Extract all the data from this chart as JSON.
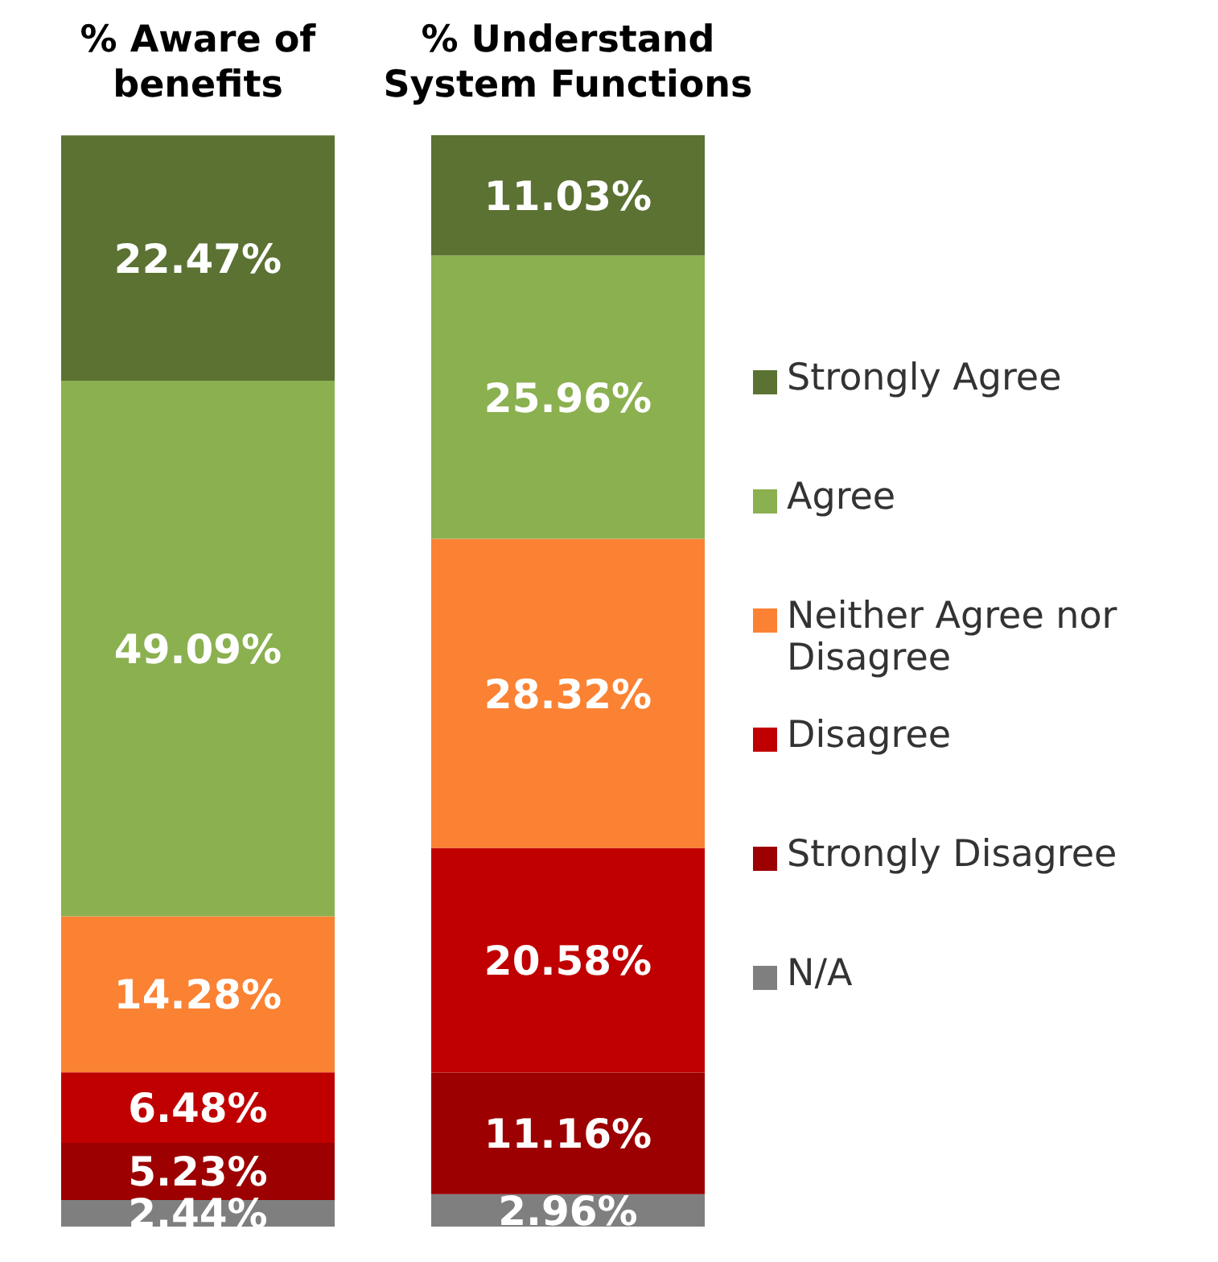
{
  "chart_data": {
    "type": "bar",
    "stacked": true,
    "legend": "right",
    "categories": [
      "% Aware of benefits",
      "% Understand System Functions"
    ],
    "series": [
      {
        "name": "N/A",
        "color": "#7f7f7f",
        "values": [
          2.44,
          2.96
        ],
        "value_labels": [
          "2.44%",
          "2.96%"
        ]
      },
      {
        "name": "Strongly Disagree",
        "color": "#9c0000",
        "values": [
          5.23,
          11.16
        ],
        "value_labels": [
          "5.23%",
          "11.16%"
        ]
      },
      {
        "name": "Disagree",
        "color": "#c00000",
        "values": [
          6.48,
          20.58
        ],
        "value_labels": [
          "6.48%",
          "20.58%"
        ]
      },
      {
        "name": "Neither Agree nor Disagree",
        "color": "#fb8233",
        "values": [
          14.28,
          28.32
        ],
        "value_labels": [
          "14.28%",
          "28.32%"
        ]
      },
      {
        "name": "Agree",
        "color": "#8bb050",
        "values": [
          49.09,
          25.96
        ],
        "value_labels": [
          "49.09%",
          "25.96%"
        ]
      },
      {
        "name": "Strongly Agree",
        "color": "#5b7232",
        "values": [
          22.47,
          11.03
        ],
        "value_labels": [
          "22.47%",
          "11.03%"
        ]
      }
    ]
  }
}
